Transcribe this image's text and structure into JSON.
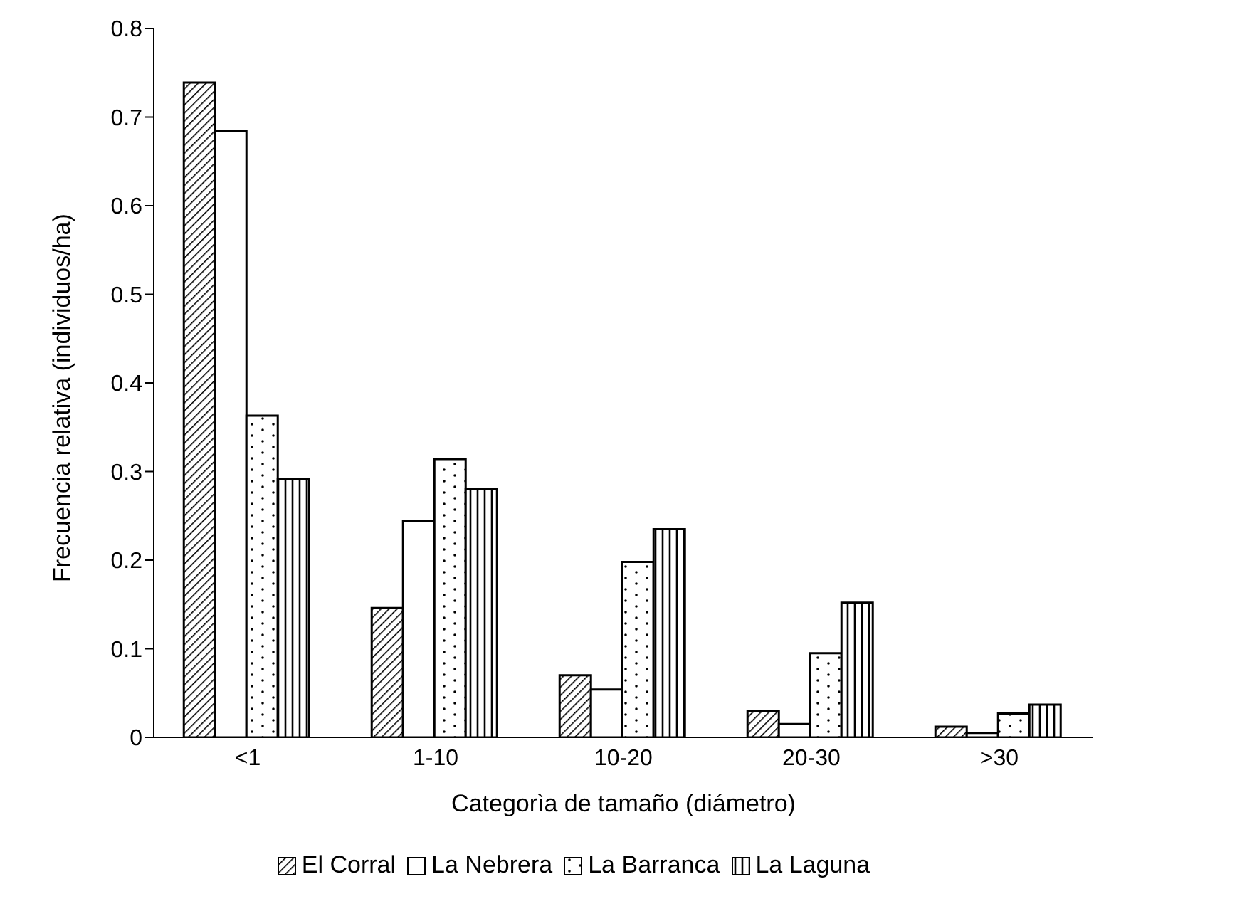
{
  "chart_data": {
    "type": "bar",
    "xlabel": "Categorìa de tamaño (diámetro)",
    "ylabel": "Frecuencia relativa (individuos/ha)",
    "categories": [
      "<1",
      "1-10",
      "10-20",
      "20-30",
      ">30"
    ],
    "series": [
      {
        "name": "El Corral",
        "color": "#000000",
        "values": [
          0.739,
          0.146,
          0.07,
          0.03,
          0.012
        ]
      },
      {
        "name": "La Nebrera",
        "color": "#ffffff",
        "values": [
          0.684,
          0.244,
          0.054,
          0.015,
          0.005
        ]
      },
      {
        "name": "La Barranca",
        "color": "#000000",
        "values": [
          0.363,
          0.314,
          0.198,
          0.095,
          0.027
        ]
      },
      {
        "name": "La Laguna",
        "color": "#000000",
        "values": [
          0.292,
          0.28,
          0.235,
          0.152,
          0.037
        ]
      }
    ],
    "ylim": [
      0,
      0.8
    ],
    "yticks": [
      0,
      0.1,
      0.2,
      0.3,
      0.4,
      0.5,
      0.6,
      0.7,
      0.8
    ],
    "grid": false,
    "legend": "bottom"
  }
}
